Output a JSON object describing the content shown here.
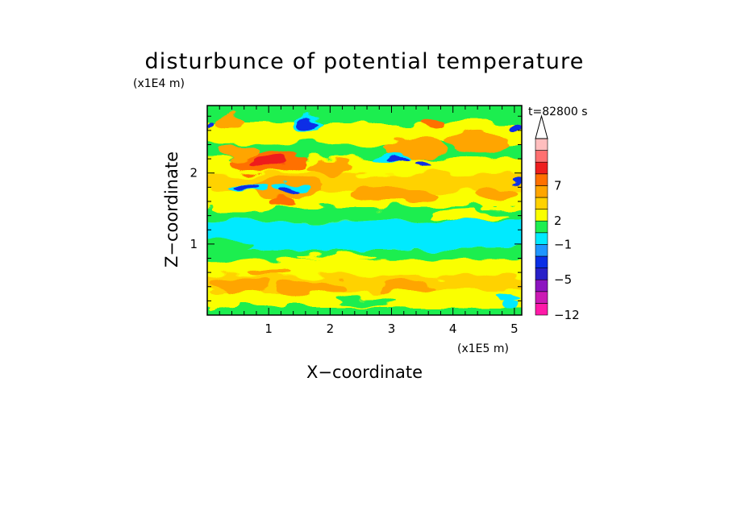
{
  "chart_data": {
    "type": "heatmap",
    "title": "disturbunce of potential temperature",
    "xlabel": "X−coordinate",
    "ylabel": "Z−coordinate",
    "x_unit": "(x1E5 m)",
    "y_unit": "(x1E4 m)",
    "time_label": "t=82800 s",
    "xlim": [
      0,
      5.12
    ],
    "ylim": [
      0,
      2.95
    ],
    "x_ticks": [
      {
        "value": 1,
        "label": "1"
      },
      {
        "value": 2,
        "label": "2"
      },
      {
        "value": 3,
        "label": "3"
      },
      {
        "value": 4,
        "label": "4"
      },
      {
        "value": 5,
        "label": "5"
      }
    ],
    "y_ticks": [
      {
        "value": 1,
        "label": "1"
      },
      {
        "value": 2,
        "label": "2"
      }
    ],
    "colorbar": {
      "levels": [
        {
          "color": "#ff1aa8",
          "label": "−12"
        },
        {
          "color": "#cc1ab4",
          "label": ""
        },
        {
          "color": "#8c14c0",
          "label": ""
        },
        {
          "color": "#2820c8",
          "label": "−5"
        },
        {
          "color": "#0a2fe6",
          "label": ""
        },
        {
          "color": "#1f96ff",
          "label": ""
        },
        {
          "color": "#00eaff",
          "label": "−1"
        },
        {
          "color": "#1eee50",
          "label": ""
        },
        {
          "color": "#faff00",
          "label": "2"
        },
        {
          "color": "#ffd200",
          "label": ""
        },
        {
          "color": "#ffa500",
          "label": ""
        },
        {
          "color": "#ff7000",
          "label": "7"
        },
        {
          "color": "#ee1e1e",
          "label": ""
        },
        {
          "color": "#ff7070",
          "label": ""
        },
        {
          "color": "#ffbebe",
          "label": ""
        }
      ],
      "overflow_color": "#ffffff"
    },
    "bands": [
      {
        "z": [
          0.0,
          0.12
        ],
        "color": "#1eee50"
      },
      {
        "z": [
          0.12,
          0.34
        ],
        "color": "#faff00"
      },
      {
        "z": [
          0.34,
          0.56
        ],
        "color": "#ffd200"
      },
      {
        "z": [
          0.56,
          0.78
        ],
        "color": "#faff00"
      },
      {
        "z": [
          0.78,
          0.92
        ],
        "color": "#1eee50"
      },
      {
        "z": [
          0.92,
          1.32
        ],
        "color": "#00eaff"
      },
      {
        "z": [
          1.32,
          1.52
        ],
        "color": "#1eee50"
      },
      {
        "z": [
          1.52,
          1.74
        ],
        "color": "#faff00"
      },
      {
        "z": [
          1.74,
          2.0
        ],
        "color": "#ffd200"
      },
      {
        "z": [
          2.0,
          2.2
        ],
        "color": "#faff00"
      },
      {
        "z": [
          2.2,
          2.42
        ],
        "color": "#1eee50"
      },
      {
        "z": [
          2.42,
          2.7
        ],
        "color": "#faff00"
      },
      {
        "z": [
          2.7,
          2.95
        ],
        "color": "#1eee50"
      }
    ],
    "blobs": [
      {
        "x": 0.55,
        "z": 0.42,
        "rx": 0.45,
        "rz": 0.1,
        "color": "#ffa500"
      },
      {
        "x": 1.7,
        "z": 0.4,
        "rx": 0.55,
        "rz": 0.1,
        "color": "#ffa500"
      },
      {
        "x": 3.3,
        "z": 0.38,
        "rx": 0.45,
        "rz": 0.09,
        "color": "#ffa500"
      },
      {
        "x": 4.5,
        "z": 0.45,
        "rx": 0.4,
        "rz": 0.08,
        "color": "#ffd200"
      },
      {
        "x": 2.6,
        "z": 0.2,
        "rx": 0.5,
        "rz": 0.05,
        "color": "#1eee50"
      },
      {
        "x": 4.9,
        "z": 0.25,
        "rx": 0.2,
        "rz": 0.06,
        "color": "#00eaff"
      },
      {
        "x": 1.0,
        "z": 0.62,
        "rx": 0.3,
        "rz": 0.06,
        "color": "#ffa500"
      },
      {
        "x": 0.3,
        "z": 0.98,
        "rx": 0.45,
        "rz": 0.1,
        "color": "#1eee50"
      },
      {
        "x": 2.1,
        "z": 0.82,
        "rx": 0.6,
        "rz": 0.05,
        "color": "#faff00"
      },
      {
        "x": 4.3,
        "z": 1.4,
        "rx": 0.6,
        "rz": 0.08,
        "color": "#faff00"
      },
      {
        "x": 0.6,
        "z": 1.52,
        "rx": 0.55,
        "rz": 0.1,
        "color": "#faff00"
      },
      {
        "x": 1.3,
        "z": 1.8,
        "rx": 0.6,
        "rz": 0.15,
        "color": "#ffa500"
      },
      {
        "x": 3.0,
        "z": 1.7,
        "rx": 0.7,
        "rz": 0.1,
        "color": "#ffa500"
      },
      {
        "x": 4.7,
        "z": 1.7,
        "rx": 0.35,
        "rz": 0.1,
        "color": "#ffa500"
      },
      {
        "x": 1.0,
        "z": 2.15,
        "rx": 0.6,
        "rz": 0.14,
        "color": "#ff7000"
      },
      {
        "x": 1.0,
        "z": 2.14,
        "rx": 0.3,
        "rz": 0.08,
        "color": "#ee1e1e"
      },
      {
        "x": 0.5,
        "z": 2.3,
        "rx": 0.35,
        "rz": 0.1,
        "color": "#ffa500"
      },
      {
        "x": 2.0,
        "z": 2.08,
        "rx": 0.4,
        "rz": 0.1,
        "color": "#ffa500"
      },
      {
        "x": 3.4,
        "z": 2.35,
        "rx": 0.5,
        "rz": 0.15,
        "color": "#ffa500"
      },
      {
        "x": 4.4,
        "z": 2.45,
        "rx": 0.5,
        "rz": 0.15,
        "color": "#ffa500"
      },
      {
        "x": 3.7,
        "z": 2.7,
        "rx": 0.2,
        "rz": 0.08,
        "color": "#ff7000"
      },
      {
        "x": 2.6,
        "z": 2.6,
        "rx": 0.5,
        "rz": 0.08,
        "color": "#faff00"
      },
      {
        "x": 0.35,
        "z": 2.72,
        "rx": 0.25,
        "rz": 0.1,
        "color": "#ffa500"
      },
      {
        "x": 1.2,
        "z": 1.6,
        "rx": 0.2,
        "rz": 0.06,
        "color": "#ff7000"
      },
      {
        "x": 0.7,
        "z": 1.78,
        "rx": 0.35,
        "rz": 0.06,
        "color": "#00eaff"
      },
      {
        "x": 1.4,
        "z": 1.78,
        "rx": 0.3,
        "rz": 0.05,
        "color": "#00eaff"
      },
      {
        "x": 0.65,
        "z": 1.78,
        "rx": 0.22,
        "rz": 0.05,
        "color": "#0a2fe6"
      },
      {
        "x": 1.35,
        "z": 1.75,
        "rx": 0.14,
        "rz": 0.04,
        "color": "#0a2fe6"
      },
      {
        "x": 1.65,
        "z": 2.7,
        "rx": 0.25,
        "rz": 0.1,
        "color": "#00eaff"
      },
      {
        "x": 1.65,
        "z": 2.7,
        "rx": 0.18,
        "rz": 0.07,
        "color": "#0a2fe6"
      },
      {
        "x": 3.0,
        "z": 2.2,
        "rx": 0.3,
        "rz": 0.07,
        "color": "#00eaff"
      },
      {
        "x": 3.1,
        "z": 2.18,
        "rx": 0.18,
        "rz": 0.04,
        "color": "#0a2fe6"
      },
      {
        "x": 3.5,
        "z": 2.1,
        "rx": 0.15,
        "rz": 0.05,
        "color": "#0a2fe6"
      },
      {
        "x": 0.05,
        "z": 2.65,
        "rx": 0.06,
        "rz": 0.06,
        "color": "#0a2fe6"
      },
      {
        "x": 5.05,
        "z": 2.62,
        "rx": 0.08,
        "rz": 0.08,
        "color": "#0a2fe6"
      },
      {
        "x": 5.05,
        "z": 1.9,
        "rx": 0.1,
        "rz": 0.06,
        "color": "#0a2fe6"
      },
      {
        "x": 4.9,
        "z": 0.15,
        "rx": 0.15,
        "rz": 0.05,
        "color": "#00eaff"
      }
    ]
  }
}
